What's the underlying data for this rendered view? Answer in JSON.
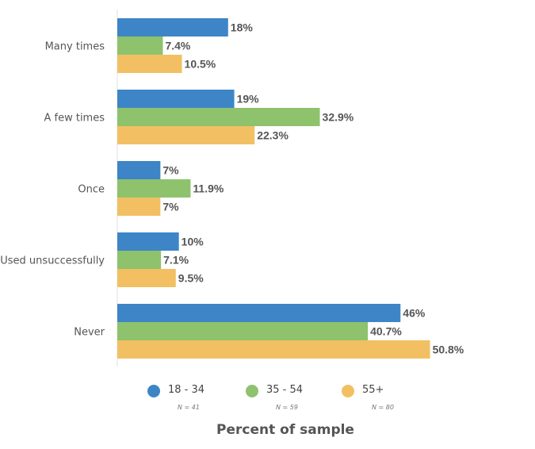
{
  "chart_data": {
    "type": "bar",
    "orientation": "horizontal",
    "categories": [
      "Many times",
      "A few times",
      "Once",
      "Used unsuccessfully",
      "Never"
    ],
    "series": [
      {
        "name": "18 - 34",
        "n_label": "N = 41",
        "color": "#3d85c6",
        "values": [
          18,
          19,
          7,
          10,
          46
        ],
        "labels": [
          "18%",
          "19%",
          "7%",
          "10%",
          "46%"
        ]
      },
      {
        "name": "35 - 54",
        "n_label": "N = 59",
        "color": "#8ec26d",
        "values": [
          7.4,
          32.9,
          11.9,
          7.1,
          40.7
        ],
        "labels": [
          "7.4%",
          "32.9%",
          "11.9%",
          "7.1%",
          "40.7%"
        ]
      },
      {
        "name": "55+",
        "n_label": "N = 80",
        "color": "#f2c062",
        "values": [
          10.5,
          22.3,
          7,
          9.5,
          50.8
        ],
        "labels": [
          "10.5%",
          "22.3%",
          "7%",
          "9.5%",
          "50.8%"
        ]
      }
    ],
    "xlabel": "Percent of sample",
    "ylabel": "",
    "title": "",
    "xlim": [
      0,
      51.5
    ],
    "grid": false,
    "legend_position": "bottom"
  }
}
